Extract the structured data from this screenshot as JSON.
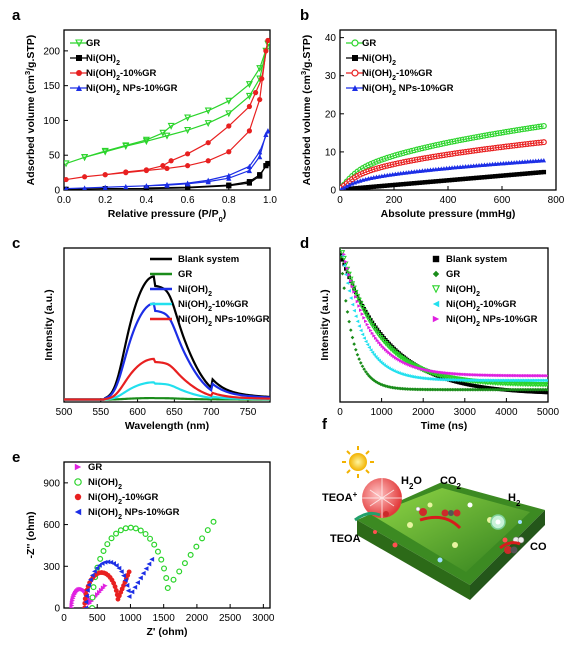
{
  "chart_data": [
    {
      "id": "a",
      "panel_label": "a",
      "type": "line",
      "xlabel": "Relative pressure (P/P",
      "xlabel_sub": "0",
      "xlabel_end": ")",
      "ylabel": "Adsorbed volume (cm",
      "ylabel_sup": "3",
      "ylabel_end": "/g.STP)",
      "xlim": [
        0,
        1
      ],
      "ylim": [
        0,
        230
      ],
      "xticks": [
        0.0,
        0.2,
        0.4,
        0.6,
        0.8,
        1.0
      ],
      "xtick_labels": [
        "0.0",
        "0.2",
        "0.4",
        "0.6",
        "0.8",
        "1.0"
      ],
      "yticks": [
        0,
        50,
        100,
        150,
        200
      ],
      "ytick_labels": [
        "0",
        "50",
        "100",
        "150",
        "200"
      ],
      "legend_position": "top-left",
      "series": [
        {
          "name": "GR",
          "color": "#2bd42b",
          "marker": "triangle-down",
          "adsorption": [
            [
              0.01,
              38
            ],
            [
              0.1,
              47
            ],
            [
              0.2,
              55
            ],
            [
              0.3,
              63
            ],
            [
              0.4,
              70
            ],
            [
              0.5,
              78
            ],
            [
              0.6,
              86
            ],
            [
              0.7,
              96
            ],
            [
              0.8,
              110
            ],
            [
              0.9,
              135
            ],
            [
              0.95,
              160
            ],
            [
              0.98,
              200
            ],
            [
              0.99,
              210
            ]
          ],
          "desorption": [
            [
              0.99,
              210
            ],
            [
              0.95,
              175
            ],
            [
              0.9,
              152
            ],
            [
              0.8,
              128
            ],
            [
              0.7,
              114
            ],
            [
              0.6,
              104
            ],
            [
              0.52,
              92
            ],
            [
              0.48,
              82
            ],
            [
              0.4,
              72
            ],
            [
              0.3,
              64
            ],
            [
              0.2,
              56
            ],
            [
              0.1,
              47
            ]
          ]
        },
        {
          "name": "Ni(OH)2",
          "color": "#000000",
          "marker": "square",
          "adsorption": [
            [
              0.01,
              1
            ],
            [
              0.2,
              2
            ],
            [
              0.4,
              2
            ],
            [
              0.6,
              3
            ],
            [
              0.8,
              6
            ],
            [
              0.9,
              10
            ],
            [
              0.95,
              20
            ],
            [
              0.98,
              35
            ],
            [
              0.99,
              38
            ]
          ],
          "desorption": [
            [
              0.99,
              38
            ],
            [
              0.95,
              22
            ],
            [
              0.9,
              12
            ],
            [
              0.8,
              7
            ],
            [
              0.6,
              4
            ],
            [
              0.4,
              3
            ]
          ]
        },
        {
          "name": "Ni(OH)2-10%GR",
          "color": "#e82020",
          "marker": "circle",
          "adsorption": [
            [
              0.01,
              15
            ],
            [
              0.1,
              19
            ],
            [
              0.2,
              22
            ],
            [
              0.3,
              25
            ],
            [
              0.4,
              28
            ],
            [
              0.5,
              31
            ],
            [
              0.6,
              35
            ],
            [
              0.7,
              42
            ],
            [
              0.8,
              55
            ],
            [
              0.9,
              85
            ],
            [
              0.95,
              130
            ],
            [
              0.98,
              200
            ],
            [
              0.99,
              215
            ]
          ],
          "desorption": [
            [
              0.99,
              215
            ],
            [
              0.96,
              160
            ],
            [
              0.93,
              140
            ],
            [
              0.9,
              120
            ],
            [
              0.8,
              92
            ],
            [
              0.7,
              68
            ],
            [
              0.6,
              52
            ],
            [
              0.52,
              42
            ],
            [
              0.48,
              35
            ],
            [
              0.4,
              29
            ],
            [
              0.3,
              26
            ],
            [
              0.2,
              22
            ]
          ]
        },
        {
          "name": "Ni(OH)2 NPs-10%GR",
          "color": "#1c2ee6",
          "marker": "triangle-up",
          "adsorption": [
            [
              0.01,
              2
            ],
            [
              0.1,
              3
            ],
            [
              0.2,
              4
            ],
            [
              0.3,
              5
            ],
            [
              0.4,
              6
            ],
            [
              0.5,
              7
            ],
            [
              0.6,
              9
            ],
            [
              0.7,
              12
            ],
            [
              0.8,
              17
            ],
            [
              0.9,
              28
            ],
            [
              0.95,
              48
            ],
            [
              0.98,
              80
            ],
            [
              0.99,
              85
            ]
          ],
          "desorption": [
            [
              0.99,
              85
            ],
            [
              0.95,
              55
            ],
            [
              0.9,
              34
            ],
            [
              0.8,
              21
            ],
            [
              0.7,
              14
            ],
            [
              0.6,
              10
            ],
            [
              0.5,
              8
            ],
            [
              0.4,
              6
            ]
          ]
        }
      ]
    },
    {
      "id": "b",
      "panel_label": "b",
      "type": "scatter",
      "xlabel": "Absolute pressure (mmHg)",
      "ylabel": "Adsorbed volume (cm",
      "ylabel_sup": "3",
      "ylabel_end": "/g.STP)",
      "xlim": [
        0,
        800
      ],
      "ylim": [
        0,
        42
      ],
      "xticks": [
        0,
        200,
        400,
        600,
        800
      ],
      "xtick_labels": [
        "0",
        "200",
        "400",
        "600",
        "800"
      ],
      "yticks": [
        0,
        10,
        20,
        30,
        40
      ],
      "ytick_labels": [
        "0",
        "10",
        "20",
        "30",
        "40"
      ],
      "legend_position": "top-left",
      "series": [
        {
          "name": "GR",
          "color": "#2bd42b",
          "marker": "circle-open",
          "model": "sqrt",
          "values": {
            "a": 0.58,
            "b": 0.0222,
            "c": 0.2
          },
          "x_range": [
            5,
            760
          ]
        },
        {
          "name": "Ni(OH)2",
          "color": "#000000",
          "marker": "square",
          "model": "linear",
          "values": {
            "slope": 0.0061,
            "c": 0.1
          },
          "x_range": [
            5,
            760
          ]
        },
        {
          "name": "Ni(OH)2-10%GR",
          "color": "#e82020",
          "marker": "circle-open",
          "model": "sqrt",
          "values": {
            "a": 0.43,
            "b": 0.0121,
            "c": 0.2
          },
          "x_range": [
            5,
            760
          ]
        },
        {
          "name": "Ni(OH)2 NPs-10%GR",
          "color": "#1c2ee6",
          "marker": "triangle-up",
          "model": "sqrt",
          "values": {
            "a": 0.27,
            "b": 0.0082,
            "c": 0.1
          },
          "x_range": [
            5,
            760
          ]
        }
      ]
    },
    {
      "id": "c",
      "panel_label": "c",
      "type": "line",
      "xlabel": "Wavelength (nm)",
      "ylabel": "Intensity (a.u.)",
      "xlim": [
        500,
        780
      ],
      "ylim": [
        0,
        1.25
      ],
      "xticks": [
        500,
        550,
        600,
        650,
        700,
        750
      ],
      "xtick_labels": [
        "500",
        "550",
        "600",
        "650",
        "700",
        "750"
      ],
      "yticks": [],
      "ytick_labels": [],
      "legend_position": "top-right",
      "series": [
        {
          "name": "Blank system",
          "color": "#000000",
          "peak": 1.0
        },
        {
          "name": "GR",
          "color": "#1a8c1a",
          "peak": 0.012
        },
        {
          "name": "Ni(OH)2",
          "color": "#1c2ee6",
          "peak": 0.78
        },
        {
          "name": "Ni(OH)2-10%GR",
          "color": "#22e0ee",
          "peak": 0.14
        },
        {
          "name": "Ni(OH)2 NPs-10%GR",
          "color": "#e82020",
          "peak": 0.33
        }
      ]
    },
    {
      "id": "d",
      "panel_label": "d",
      "type": "scatter",
      "xlabel": "Time (ns)",
      "ylabel": "Intensity (a.u.)",
      "xlim": [
        0,
        5000
      ],
      "ylim": [
        0,
        1.0
      ],
      "xticks": [
        0,
        1000,
        2000,
        3000,
        4000,
        5000
      ],
      "xtick_labels": [
        "0",
        "1000",
        "2000",
        "3000",
        "4000",
        "5000"
      ],
      "yticks": [],
      "ytick_labels": [],
      "legend_position": "top-right",
      "series": [
        {
          "name": "Blank system",
          "color": "#000000",
          "marker": "square",
          "tau": 1150,
          "floor": 0.18
        },
        {
          "name": "GR",
          "color": "#1a8c1a",
          "marker": "diamond",
          "tau": 300,
          "floor": 0.05
        },
        {
          "name": "Ni(OH)2",
          "color": "#2bd42b",
          "marker": "triangle-down",
          "tau": 900,
          "floor": 0.15
        },
        {
          "name": "Ni(OH)2-10%GR",
          "color": "#22e0ee",
          "marker": "triangle-left",
          "tau": 480,
          "floor": 0.1
        },
        {
          "name": "Ni(OH)2 NPs-10%GR",
          "color": "#e020e0",
          "marker": "triangle-right",
          "tau": 650,
          "floor": 0.12
        }
      ]
    },
    {
      "id": "e",
      "panel_label": "e",
      "type": "scatter",
      "xlabel": "Z' (ohm)",
      "ylabel": "-Z'' (ohm)",
      "xlim": [
        0,
        3100
      ],
      "ylim": [
        0,
        1050
      ],
      "xticks": [
        0,
        500,
        1000,
        1500,
        2000,
        2500,
        3000
      ],
      "xtick_labels": [
        "0",
        "500",
        "1000",
        "1500",
        "2000",
        "2500",
        "3000"
      ],
      "yticks": [
        0,
        300,
        600,
        900
      ],
      "ytick_labels": [
        "0",
        "300",
        "600",
        "900"
      ],
      "legend_position": "top-left",
      "series": [
        {
          "name": "GR",
          "color": "#e020e0",
          "marker": "triangle-right",
          "center": 230,
          "radius": 160,
          "tail_to": [
            620,
            160
          ]
        },
        {
          "name": "Ni(OH)2",
          "color": "#2bd42b",
          "marker": "circle-open",
          "center": 900,
          "radius": 680,
          "tail_to": [
            2250,
            620
          ]
        },
        {
          "name": "Ni(OH)2-10%GR",
          "color": "#e82020",
          "marker": "circle",
          "center": 520,
          "radius": 300,
          "tail_to": [
            980,
            260
          ]
        },
        {
          "name": "Ni(OH)2 NPs-10%GR",
          "color": "#1c2ee6",
          "marker": "triangle-left",
          "center": 600,
          "radius": 390,
          "tail_to": [
            1320,
            350
          ]
        }
      ]
    }
  ],
  "panel_f": {
    "panel_label": "f",
    "labels": {
      "teoa_plus": "TEOA",
      "teoa_plus_sup": "+",
      "teoa": "TEOA",
      "h2o": "H",
      "h2o_sub": "2",
      "h2o_end": "O",
      "co2": "CO",
      "co2_sub": "2",
      "h2": "H",
      "h2_sub": "2",
      "co": "CO"
    }
  }
}
